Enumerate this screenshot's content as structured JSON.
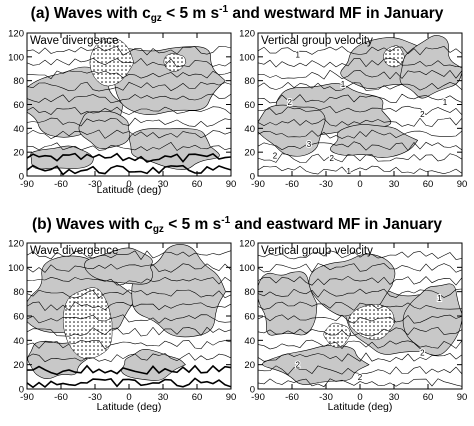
{
  "rows": [
    {
      "label": "(a)",
      "pre": "Waves with c",
      "sub": "gz",
      "mid": " < 5 m s",
      "sup": "-1",
      "post": " and westward MF in January"
    },
    {
      "label": "(b)",
      "pre": "Waves with c",
      "sub": "gz",
      "mid": " < 5 m s",
      "sup": "-1",
      "post": " and eastward MF in January"
    }
  ],
  "chart_data": [
    {
      "type": "contour",
      "row": "a",
      "title": "Wave divergence",
      "xlabel": "Latitude (deg)",
      "xlim": [
        -90,
        90
      ],
      "xticks": [
        -90,
        -60,
        -30,
        0,
        30,
        60,
        90
      ],
      "ylim": [
        0,
        120
      ],
      "yticks": [
        0,
        20,
        40,
        60,
        80,
        100,
        120
      ],
      "contour_labels": [],
      "colors": {
        "shade": "#c8c8c8",
        "line": "#000000"
      }
    },
    {
      "type": "contour",
      "row": "a",
      "title": "Vertical group velocity",
      "xlabel": "",
      "xlim": [
        -90,
        90
      ],
      "xticks": [
        -90,
        -60,
        -30,
        0,
        30,
        60,
        90
      ],
      "ylim": [
        0,
        120
      ],
      "yticks": [
        0,
        20,
        40,
        60,
        80,
        100,
        120
      ],
      "contour_labels": [
        {
          "text": "1",
          "lat": -55,
          "z": 102
        },
        {
          "text": "1",
          "lat": -15,
          "z": 77
        },
        {
          "text": "2",
          "lat": -62,
          "z": 62
        },
        {
          "text": "3",
          "lat": -45,
          "z": 27
        },
        {
          "text": "2",
          "lat": -75,
          "z": 17
        },
        {
          "text": "2",
          "lat": -25,
          "z": 15
        },
        {
          "text": "1",
          "lat": -10,
          "z": 4
        },
        {
          "text": "1",
          "lat": 75,
          "z": 62
        },
        {
          "text": "2",
          "lat": 55,
          "z": 52
        }
      ],
      "colors": {
        "shade": "#c8c8c8",
        "line": "#000000"
      }
    },
    {
      "type": "contour",
      "row": "b",
      "title": "Wave divergence",
      "xlabel": "Latitude (deg)",
      "xlim": [
        -90,
        90
      ],
      "xticks": [
        -90,
        -60,
        -30,
        0,
        30,
        60,
        90
      ],
      "ylim": [
        0,
        120
      ],
      "yticks": [
        0,
        20,
        40,
        60,
        80,
        100,
        120
      ],
      "contour_labels": [],
      "colors": {
        "shade": "#c8c8c8",
        "line": "#000000"
      }
    },
    {
      "type": "contour",
      "row": "b",
      "title": "Vertical group velocity",
      "xlabel": "Latitude (deg)",
      "xlim": [
        -90,
        90
      ],
      "xticks": [
        -90,
        -60,
        -30,
        0,
        30,
        60,
        90
      ],
      "ylim": [
        0,
        120
      ],
      "yticks": [
        0,
        20,
        40,
        60,
        80,
        100,
        120
      ],
      "contour_labels": [
        {
          "text": "1",
          "lat": 70,
          "z": 75
        },
        {
          "text": "2",
          "lat": 55,
          "z": 30
        },
        {
          "text": "2",
          "lat": -55,
          "z": 20
        },
        {
          "text": "2",
          "lat": 0,
          "z": 10
        }
      ],
      "colors": {
        "shade": "#c8c8c8",
        "line": "#000000"
      }
    }
  ]
}
